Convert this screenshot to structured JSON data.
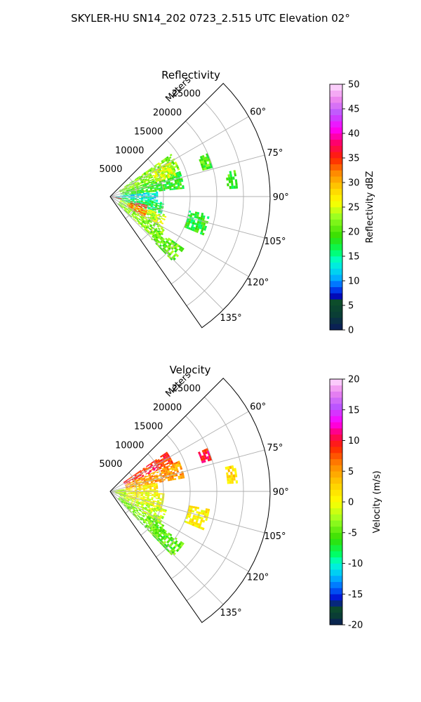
{
  "figure": {
    "title": "SKYLER-HU  SN14_202  0723_2.515 UTC Elevation 02°"
  },
  "chart_data": [
    {
      "type": "heatmap",
      "subtype": "polar-sector-radar-ppi",
      "title": "Reflectivity",
      "radial_axis_label": "Meters",
      "radial_range": [
        0,
        30000
      ],
      "radial_ticks": [
        5000,
        10000,
        15000,
        20000,
        25000
      ],
      "radial_tick_labels": [
        "5000",
        "10000",
        "15000",
        "20000",
        "25000"
      ],
      "azimuth_range_deg": [
        45,
        145
      ],
      "azimuth_ticks_deg": [
        60,
        75,
        90,
        105,
        120,
        135
      ],
      "azimuth_tick_labels": [
        "60°",
        "75°",
        "90°",
        "105°",
        "120°",
        "135°"
      ],
      "grid": true,
      "colorbar": {
        "label": "Reflectivity dBZ",
        "range": [
          0,
          50
        ],
        "ticks": [
          0,
          5,
          10,
          15,
          20,
          25,
          30,
          35,
          40,
          45,
          50
        ],
        "tick_labels": [
          "0",
          "5",
          "10",
          "15",
          "20",
          "25",
          "30",
          "35",
          "40",
          "45",
          "50"
        ]
      },
      "echoes": [
        {
          "az": [
            55,
            70
          ],
          "r": [
            2000,
            14000
          ],
          "value": 22
        },
        {
          "az": [
            70,
            84
          ],
          "r": [
            2000,
            14000
          ],
          "value": 19
        },
        {
          "az": [
            84,
            96
          ],
          "r": [
            1000,
            9000
          ],
          "value": 13
        },
        {
          "az": [
            96,
            108
          ],
          "r": [
            1000,
            10000
          ],
          "value": 17
        },
        {
          "az": [
            108,
            120
          ],
          "r": [
            2000,
            11000
          ],
          "value": 24
        },
        {
          "az": [
            120,
            134
          ],
          "r": [
            2000,
            12000
          ],
          "value": 22
        },
        {
          "az": [
            110,
            120
          ],
          "r": [
            3500,
            7500
          ],
          "value": 32
        },
        {
          "az": [
            103,
            110
          ],
          "r": [
            4000,
            7000
          ],
          "value": 35
        },
        {
          "az": [
            98,
            104
          ],
          "r": [
            600,
            2200
          ],
          "value": 36
        },
        {
          "az": [
            60,
            72
          ],
          "r": [
            9000,
            13000
          ],
          "value": 25
        },
        {
          "az": [
            125,
            135
          ],
          "r": [
            11000,
            17000
          ],
          "value": 21
        },
        {
          "az": [
            66,
            74
          ],
          "r": [
            18000,
            20000
          ],
          "value": 20
        },
        {
          "az": [
            100,
            112
          ],
          "r": [
            15000,
            19000
          ],
          "value": 18
        },
        {
          "az": [
            78,
            86
          ],
          "r": [
            22000,
            24000
          ],
          "value": 19
        }
      ]
    },
    {
      "type": "heatmap",
      "subtype": "polar-sector-radar-ppi",
      "title": "Velocity",
      "radial_axis_label": "Meters",
      "radial_range": [
        0,
        30000
      ],
      "radial_ticks": [
        5000,
        10000,
        15000,
        20000,
        25000
      ],
      "radial_tick_labels": [
        "5000",
        "10000",
        "15000",
        "20000",
        "25000"
      ],
      "azimuth_range_deg": [
        45,
        145
      ],
      "azimuth_ticks_deg": [
        60,
        75,
        90,
        105,
        120,
        135
      ],
      "azimuth_tick_labels": [
        "60°",
        "75°",
        "90°",
        "105°",
        "120°",
        "135°"
      ],
      "grid": true,
      "colorbar": {
        "label": "Velocity (m/s)",
        "range": [
          -20,
          20
        ],
        "ticks": [
          -20,
          -15,
          -10,
          -5,
          0,
          5,
          10,
          15,
          20
        ],
        "tick_labels": [
          "-20",
          "-15",
          "-10",
          "-5",
          "0",
          "5",
          "10",
          "15",
          "20"
        ]
      },
      "echoes": [
        {
          "az": [
            55,
            66
          ],
          "r": [
            3000,
            13000
          ],
          "value": 9
        },
        {
          "az": [
            66,
            80
          ],
          "r": [
            3000,
            14000
          ],
          "value": 5
        },
        {
          "az": [
            80,
            92
          ],
          "r": [
            1000,
            9000
          ],
          "value": 1
        },
        {
          "az": [
            92,
            108
          ],
          "r": [
            1000,
            10000
          ],
          "value": 0
        },
        {
          "az": [
            108,
            122
          ],
          "r": [
            2000,
            11000
          ],
          "value": -2
        },
        {
          "az": [
            122,
            135
          ],
          "r": [
            2000,
            12000
          ],
          "value": -4
        },
        {
          "az": [
            80,
            110
          ],
          "r": [
            200,
            3000
          ],
          "value": -3
        },
        {
          "az": [
            125,
            135
          ],
          "r": [
            11000,
            17000
          ],
          "value": -5
        },
        {
          "az": [
            100,
            112
          ],
          "r": [
            15000,
            19000
          ],
          "value": 1
        },
        {
          "az": [
            66,
            72
          ],
          "r": [
            18000,
            20000
          ],
          "value": 10
        },
        {
          "az": [
            78,
            86
          ],
          "r": [
            22000,
            24000
          ],
          "value": 2
        }
      ]
    }
  ]
}
